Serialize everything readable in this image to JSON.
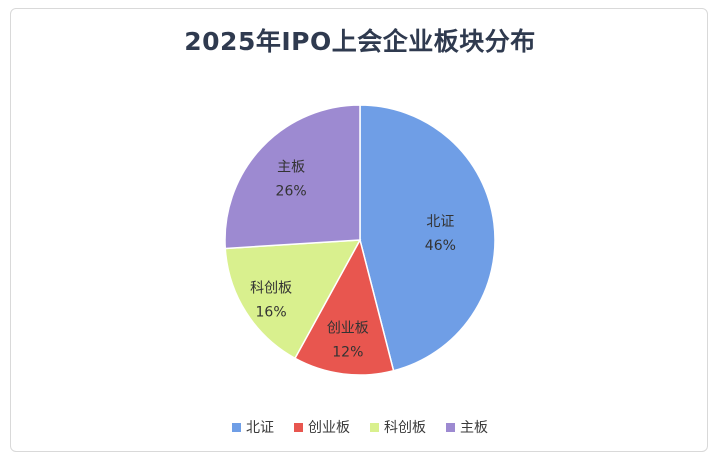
{
  "chart_data": {
    "type": "pie",
    "title": "2025年IPO上会企业板块分布",
    "slices": [
      {
        "label": "北证",
        "value": 46,
        "value_label": "46%",
        "color": "#6f9ee6"
      },
      {
        "label": "创业板",
        "value": 12,
        "value_label": "12%",
        "color": "#e8564f"
      },
      {
        "label": "科创板",
        "value": 16,
        "value_label": "16%",
        "color": "#d9f08e"
      },
      {
        "label": "主板",
        "value": 26,
        "value_label": "26%",
        "color": "#9d8ad1"
      }
    ],
    "legend": [
      "北证",
      "创业板",
      "科创板",
      "主板"
    ],
    "legend_position": "bottom"
  }
}
